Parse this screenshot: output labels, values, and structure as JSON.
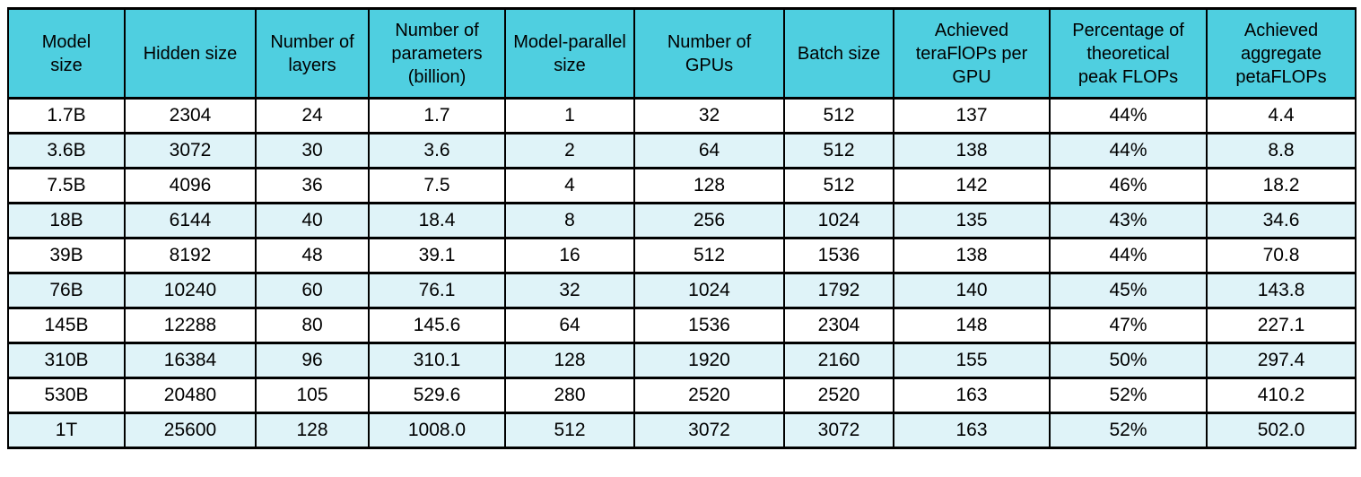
{
  "chart_data": {
    "type": "table",
    "columns": [
      "Model\nsize",
      "Hidden size",
      "Number of\nlayers",
      "Number of\nparameters\n(billion)",
      "Model-parallel\nsize",
      "Number of\nGPUs",
      "Batch size",
      "Achieved\nteraFlOPs per\nGPU",
      "Percentage of\ntheoretical\npeak FLOPs",
      "Achieved\naggregate\npetaFLOPs"
    ],
    "rows": [
      [
        "1.7B",
        "2304",
        "24",
        "1.7",
        "1",
        "32",
        "512",
        "137",
        "44%",
        "4.4"
      ],
      [
        "3.6B",
        "3072",
        "30",
        "3.6",
        "2",
        "64",
        "512",
        "138",
        "44%",
        "8.8"
      ],
      [
        "7.5B",
        "4096",
        "36",
        "7.5",
        "4",
        "128",
        "512",
        "142",
        "46%",
        "18.2"
      ],
      [
        "18B",
        "6144",
        "40",
        "18.4",
        "8",
        "256",
        "1024",
        "135",
        "43%",
        "34.6"
      ],
      [
        "39B",
        "8192",
        "48",
        "39.1",
        "16",
        "512",
        "1536",
        "138",
        "44%",
        "70.8"
      ],
      [
        "76B",
        "10240",
        "60",
        "76.1",
        "32",
        "1024",
        "1792",
        "140",
        "45%",
        "143.8"
      ],
      [
        "145B",
        "12288",
        "80",
        "145.6",
        "64",
        "1536",
        "2304",
        "148",
        "47%",
        "227.1"
      ],
      [
        "310B",
        "16384",
        "96",
        "310.1",
        "128",
        "1920",
        "2160",
        "155",
        "50%",
        "297.4"
      ],
      [
        "530B",
        "20480",
        "105",
        "529.6",
        "280",
        "2520",
        "2520",
        "163",
        "52%",
        "410.2"
      ],
      [
        "1T",
        "25600",
        "128",
        "1008.0",
        "512",
        "3072",
        "3072",
        "163",
        "52%",
        "502.0"
      ]
    ]
  },
  "colors": {
    "header_bg": "#4FCFE0",
    "row_bg": "#FFFFFF",
    "row_alt_bg": "#DFF3F8",
    "border": "#000000",
    "text": "#000000"
  }
}
